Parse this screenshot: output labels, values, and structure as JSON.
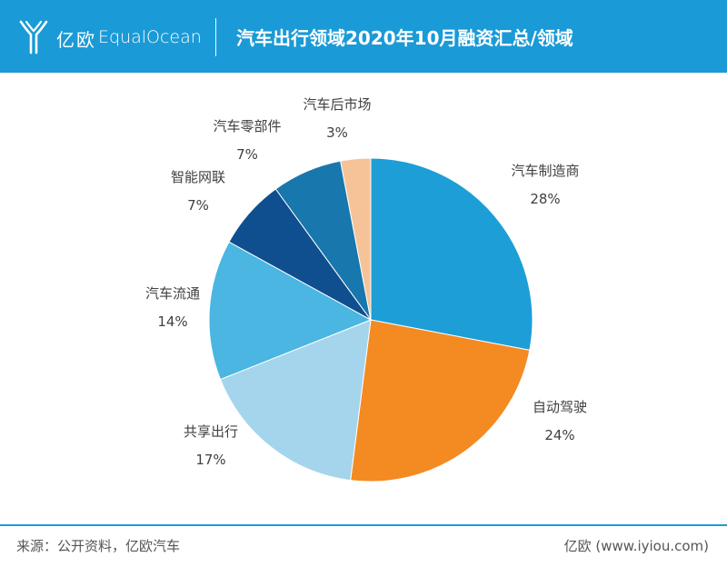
{
  "header": {
    "brand_cn": "亿欧",
    "brand_en": "EqualOcean",
    "title": "汽车出行领域2020年10月融资汇总/领域"
  },
  "footer": {
    "source": "来源：公开资料，亿欧汽车",
    "site": "亿欧 (www.iyiou.com)"
  },
  "colors": {
    "header_bg": "#1a9ad6",
    "slices": [
      "#1d9ed7",
      "#f48a22",
      "#a4d5ec",
      "#4ab6e1",
      "#0f4f8f",
      "#1877ad",
      "#f6c398"
    ]
  },
  "chart_data": {
    "type": "pie",
    "title": "汽车出行领域2020年10月融资汇总/领域",
    "start_angle_deg": 0,
    "direction": "clockwise",
    "slices": [
      {
        "label": "汽车制造商",
        "value": 28,
        "display": "28%"
      },
      {
        "label": "自动驾驶",
        "value": 24,
        "display": "24%"
      },
      {
        "label": "共享出行",
        "value": 17,
        "display": "17%"
      },
      {
        "label": "汽车流通",
        "value": 14,
        "display": "14%"
      },
      {
        "label": "智能网联",
        "value": 7,
        "display": "7%"
      },
      {
        "label": "汽车零部件",
        "value": 7,
        "display": "7%"
      },
      {
        "label": "汽车后市场",
        "value": 3,
        "display": "3%"
      }
    ]
  }
}
